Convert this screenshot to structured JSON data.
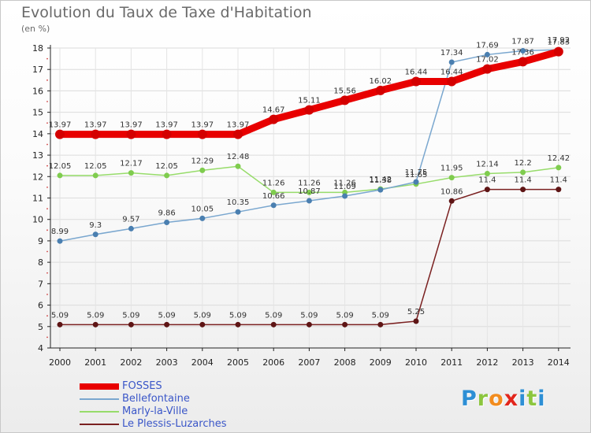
{
  "title": "Evolution du Taux de Taxe d'Habitation",
  "unit_label": "(en %)",
  "logo": {
    "letters": [
      "P",
      "r",
      "o",
      "x",
      "i",
      "t",
      "i"
    ],
    "colors": [
      "#2d8fd5",
      "#8cc63e",
      "#f28c1e",
      "#e2261c",
      "#2d8fd5",
      "#8cc63e",
      "#2d8fd5"
    ]
  },
  "chart_data": {
    "type": "line",
    "title": "Evolution du Taux de Taxe d'Habitation",
    "ylabel": "(en %)",
    "xlabel": "",
    "x": [
      "2000",
      "2001",
      "2002",
      "2003",
      "2004",
      "2005",
      "2006",
      "2007",
      "2008",
      "2009",
      "2010",
      "2011",
      "2012",
      "2013",
      "2014"
    ],
    "ylim": [
      4,
      18
    ],
    "yticks": [
      "4",
      "5",
      "6",
      "7",
      "8",
      "9",
      "10",
      "11",
      "12",
      "13",
      "14",
      "15",
      "16",
      "17",
      "18"
    ],
    "grid": true,
    "legend": "bottom-left",
    "series": [
      {
        "name": "FOSSES",
        "color": "#e80000",
        "width": 9,
        "point_radius": 6,
        "values": [
          13.97,
          13.97,
          13.97,
          13.97,
          13.97,
          13.97,
          14.67,
          15.11,
          15.56,
          16.02,
          16.44,
          16.44,
          17.02,
          17.36,
          17.83
        ],
        "labels": [
          "13.97",
          "13.97",
          "13.97",
          "13.97",
          "13.97",
          "13.97",
          "14.67",
          "15.11",
          "15.56",
          "16.02",
          "16.44",
          "16.44",
          "17.02",
          "17.36",
          "17.83"
        ]
      },
      {
        "name": "Bellefontaine",
        "color": "#7aa7cf",
        "width": 1.5,
        "point_radius": 3.5,
        "values": [
          8.99,
          9.3,
          9.57,
          9.86,
          10.05,
          10.35,
          10.66,
          10.87,
          11.09,
          11.38,
          11.75,
          17.34,
          17.69,
          17.87,
          17.92
        ],
        "labels": [
          "8.99",
          "9.3",
          "9.57",
          "9.86",
          "10.05",
          "10.35",
          "10.66",
          "10.87",
          "11.09",
          "11.38",
          "11.75",
          "17.34",
          "17.69",
          "17.87",
          "17.92"
        ]
      },
      {
        "name": "Marly-la-Ville",
        "color": "#97dc6a",
        "width": 1.5,
        "point_radius": 3.5,
        "values": [
          12.05,
          12.05,
          12.17,
          12.05,
          12.29,
          12.48,
          11.26,
          11.26,
          11.26,
          11.42,
          11.65,
          11.95,
          12.14,
          12.2,
          12.42
        ],
        "labels": [
          "12.05",
          "12.05",
          "12.17",
          "12.05",
          "12.29",
          "12.48",
          "11.26",
          "11.26",
          "11.26",
          "11.42",
          "11.65",
          "11.95",
          "12.14",
          "12.2",
          "12.42"
        ]
      },
      {
        "name": "Le Plessis-Luzarches",
        "color": "#7a2020",
        "width": 1.5,
        "point_radius": 3.5,
        "values": [
          5.09,
          5.09,
          5.09,
          5.09,
          5.09,
          5.09,
          5.09,
          5.09,
          5.09,
          5.09,
          5.25,
          10.86,
          11.4,
          11.4,
          11.4
        ],
        "labels": [
          "5.09",
          "5.09",
          "5.09",
          "5.09",
          "5.09",
          "5.09",
          "5.09",
          "5.09",
          "5.09",
          "5.09",
          "5.25",
          "10.86",
          "11.4",
          "11.4",
          "11.4"
        ]
      }
    ]
  }
}
